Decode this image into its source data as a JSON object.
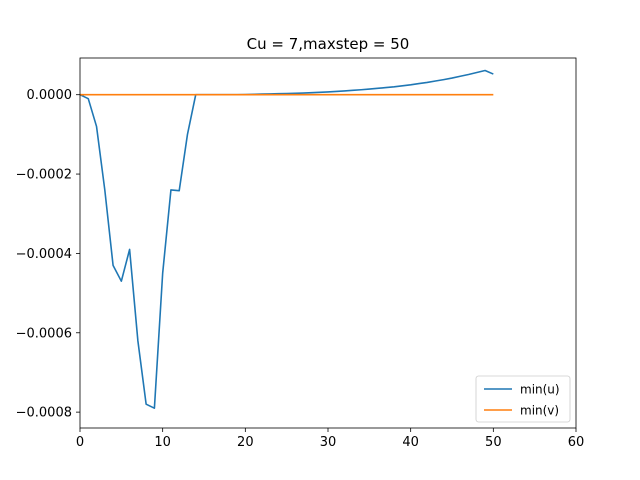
{
  "chart_data": {
    "type": "line",
    "title": "Cu = 7,maxstep = 50",
    "xlabel": "",
    "ylabel": "",
    "xlim": [
      0,
      60
    ],
    "ylim": [
      -0.00084,
      9.25e-05
    ],
    "x_ticks": [
      0,
      10,
      20,
      30,
      40,
      50,
      60
    ],
    "x_tick_labels": [
      "0",
      "10",
      "20",
      "30",
      "40",
      "50",
      "60"
    ],
    "y_ticks": [
      0.0,
      -0.0002,
      -0.0004,
      -0.0006,
      -0.0008
    ],
    "y_tick_labels": [
      "0.0000",
      "−0.0002",
      "−0.0004",
      "−0.0006",
      "−0.0008"
    ],
    "grid": false,
    "legend_position": "lower-right",
    "series": [
      {
        "name": "min(u)",
        "color": "#1f77b4",
        "x": [
          0,
          1,
          2,
          3,
          4,
          5,
          6,
          7,
          8,
          9,
          10,
          11,
          12,
          13,
          14,
          15,
          16,
          17,
          18,
          19,
          20,
          21,
          22,
          23,
          24,
          25,
          26,
          27,
          28,
          29,
          30,
          31,
          32,
          33,
          34,
          35,
          36,
          37,
          38,
          39,
          40,
          41,
          42,
          43,
          44,
          45,
          46,
          47,
          48,
          49,
          50
        ],
        "y": [
          0.0,
          -1e-05,
          -8e-05,
          -0.00024,
          -0.00043,
          -0.00047,
          -0.00039,
          -0.00062,
          -0.00078,
          -0.00079,
          -0.00045,
          -0.00024,
          -0.000242,
          -0.0001,
          0.0,
          0.0,
          0.0,
          0.0,
          0.0,
          0.0,
          5e-07,
          1e-06,
          1.5e-06,
          2e-06,
          2.5e-06,
          3e-06,
          3.5e-06,
          4.2e-06,
          5e-06,
          6e-06,
          7e-06,
          8.2e-06,
          9.5e-06,
          1.1e-05,
          1.25e-05,
          1.42e-05,
          1.6e-05,
          1.8e-05,
          2e-05,
          2.25e-05,
          2.5e-05,
          2.8e-05,
          3.1e-05,
          3.45e-05,
          3.8e-05,
          4.2e-05,
          4.65e-05,
          5.1e-05,
          5.6e-05,
          6.1e-05,
          5.2e-05
        ]
      },
      {
        "name": "min(v)",
        "color": "#ff7f0e",
        "x": [
          0,
          50
        ],
        "y": [
          0.0,
          0.0
        ]
      }
    ]
  }
}
